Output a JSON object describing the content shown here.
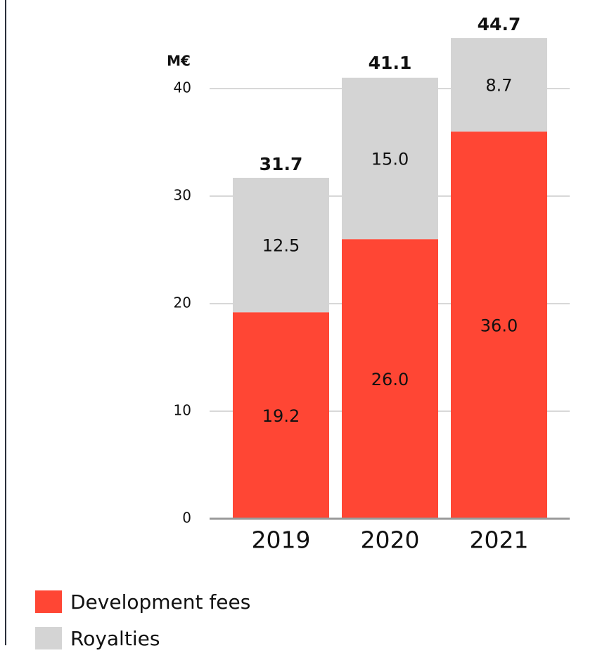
{
  "chart_data": {
    "type": "stacked_bar",
    "y_unit": "M€",
    "categories": [
      "2019",
      "2020",
      "2021"
    ],
    "series": [
      {
        "name": "Development fees",
        "color": "#ff4634",
        "values": [
          19.2,
          26.0,
          36.0
        ],
        "value_labels": [
          "19.2",
          "26.0",
          "36.0"
        ]
      },
      {
        "name": "Royalties",
        "color": "#d4d4d4",
        "values": [
          12.5,
          15.0,
          8.7
        ],
        "value_labels": [
          "12.5",
          "15.0",
          "8.7"
        ]
      }
    ],
    "totals": [
      31.7,
      41.1,
      44.7
    ],
    "ylim": [
      0,
      40
    ],
    "yticks": [
      0,
      10,
      20,
      30,
      40
    ],
    "grid": true
  }
}
